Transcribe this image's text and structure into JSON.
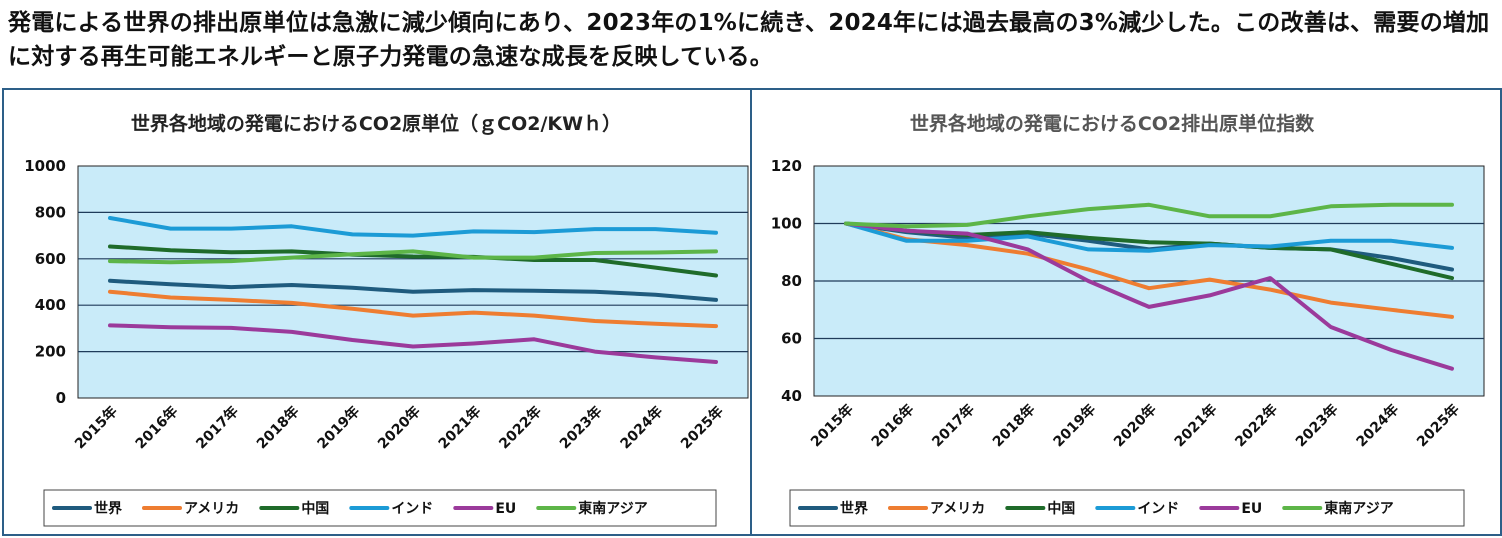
{
  "headline": "発電による世界の排出原単位は急激に減少傾向にあり、2023年の1%に続き、2024年には過去最高の3%減少した。この改善は、需要の増加に対する再生可能エネルギーと原子力発電の急速な成長を反映している。",
  "colors": {
    "世界": "#1f5b7e",
    "アメリカ": "#ee7d31",
    "中国": "#1f6b2a",
    "インド": "#1c9bd6",
    "EU": "#9b3a9b",
    "東南アジア": "#5db548",
    "plot_bg": "#c9ebf9",
    "gridline": "#1f3b5a",
    "border": "#2d5f88"
  },
  "chart_data": [
    {
      "type": "line",
      "title": "世界各地域の発電におけるCO2原単位（ｇCO2/KWｈ）",
      "title_color": "#222222",
      "xlabel": "",
      "ylabel": "",
      "ylim": [
        0,
        1000
      ],
      "yticks": [
        "0",
        "200",
        "400",
        "600",
        "800",
        "1000"
      ],
      "categories": [
        "2015年",
        "2016年",
        "2017年",
        "2018年",
        "2019年",
        "2020年",
        "2021年",
        "2022年",
        "2023年",
        "2024年",
        "2025年"
      ],
      "grid": true,
      "legend_position": "bottom",
      "series": [
        {
          "name": "世界",
          "values": [
            505,
            490,
            478,
            487,
            475,
            458,
            465,
            462,
            458,
            445,
            423
          ]
        },
        {
          "name": "アメリカ",
          "values": [
            458,
            433,
            423,
            410,
            385,
            355,
            368,
            355,
            332,
            320,
            310
          ]
        },
        {
          "name": "中国",
          "values": [
            653,
            637,
            628,
            632,
            618,
            610,
            608,
            595,
            595,
            562,
            528
          ]
        },
        {
          "name": "インド",
          "values": [
            776,
            730,
            730,
            740,
            705,
            700,
            718,
            715,
            728,
            728,
            712
          ]
        },
        {
          "name": "EU",
          "values": [
            313,
            305,
            302,
            285,
            250,
            222,
            235,
            253,
            200,
            175,
            155
          ]
        },
        {
          "name": "東南アジア",
          "values": [
            590,
            585,
            590,
            605,
            620,
            632,
            605,
            605,
            625,
            627,
            632
          ]
        }
      ]
    },
    {
      "type": "line",
      "title": "世界各地域の発電におけるCO2排出原単位指数",
      "title_color": "#555555",
      "xlabel": "",
      "ylabel": "",
      "ylim": [
        40,
        120
      ],
      "yticks": [
        "40",
        "60",
        "80",
        "100",
        "120"
      ],
      "categories": [
        "2015年",
        "2016年",
        "2017年",
        "2018年",
        "2019年",
        "2020年",
        "2021年",
        "2022年",
        "2023年",
        "2024年",
        "2025年"
      ],
      "grid": true,
      "legend_position": "bottom",
      "series": [
        {
          "name": "世界",
          "values": [
            100,
            97,
            95,
            96.5,
            94,
            91,
            93,
            91.5,
            91,
            88,
            84
          ]
        },
        {
          "name": "アメリカ",
          "values": [
            100,
            94.5,
            92.5,
            89.5,
            84,
            77.5,
            80.5,
            77,
            72.5,
            70,
            67.5
          ]
        },
        {
          "name": "中国",
          "values": [
            100,
            97.5,
            96,
            97,
            95,
            93.5,
            93,
            91.5,
            91,
            86,
            81
          ]
        },
        {
          "name": "インド",
          "values": [
            100,
            94,
            94,
            95.5,
            91,
            90.5,
            92.5,
            92,
            94,
            94,
            91.5
          ]
        },
        {
          "name": "EU",
          "values": [
            100,
            97.5,
            96.5,
            91,
            80,
            71,
            75,
            81,
            64,
            56,
            49.5
          ]
        },
        {
          "name": "東南アジア",
          "values": [
            100,
            99,
            99.5,
            102.5,
            105,
            106.5,
            102.5,
            102.5,
            106,
            106.5,
            106.5
          ]
        }
      ]
    }
  ]
}
